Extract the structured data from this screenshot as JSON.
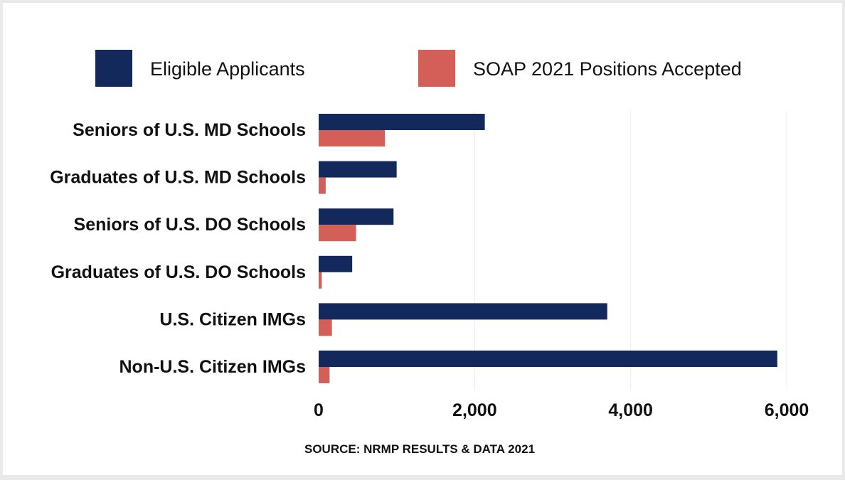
{
  "chart_data": {
    "type": "bar",
    "orientation": "horizontal",
    "categories": [
      "Seniors of U.S. MD Schools",
      "Graduates of U.S. MD Schools",
      "Seniors of U.S. DO Schools",
      "Graduates of U.S. DO Schools",
      "U.S. Citizen IMGs",
      "Non-U.S. Citizen IMGs"
    ],
    "series": [
      {
        "name": "Eligible Applicants",
        "color": "#13295b",
        "values": [
          2130,
          1000,
          960,
          430,
          3700,
          5880
        ]
      },
      {
        "name": "SOAP 2021 Positions Accepted",
        "color": "#d45f58",
        "values": [
          850,
          90,
          480,
          40,
          170,
          140
        ]
      }
    ],
    "xlim": [
      0,
      6000
    ],
    "xticks": [
      0,
      2000,
      4000,
      6000
    ],
    "xtick_labels": [
      "0",
      "2,000",
      "4,000",
      "6,000"
    ],
    "grid": "vertical",
    "legend_position": "top",
    "source": "SOURCE: NRMP RESULTS & DATA 2021"
  }
}
